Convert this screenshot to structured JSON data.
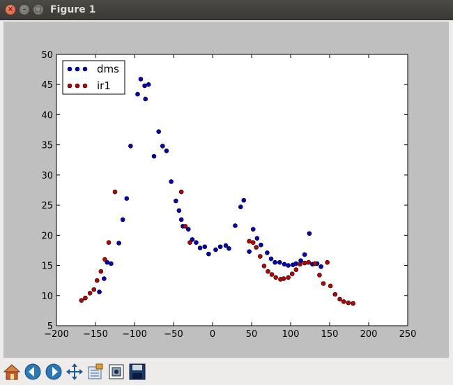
{
  "window": {
    "title": "Figure 1"
  },
  "toolbar": {
    "buttons": [
      "home-icon",
      "back-icon",
      "forward-icon",
      "pan-icon",
      "configure-subplots-icon",
      "zoom-icon",
      "save-icon"
    ]
  },
  "chart_data": {
    "type": "scatter",
    "xlim": [
      -200,
      250
    ],
    "ylim": [
      5,
      50
    ],
    "xticks": [
      -200,
      -150,
      -100,
      -50,
      0,
      50,
      100,
      150,
      200,
      250
    ],
    "yticks": [
      5,
      10,
      15,
      20,
      25,
      30,
      35,
      40,
      45,
      50
    ],
    "xlabel": "",
    "ylabel": "",
    "title": "",
    "grid": false,
    "legend_position": "upper-left",
    "series": [
      {
        "name": "dms",
        "color": "#0000bf",
        "points": [
          [
            -145,
            10.6
          ],
          [
            -139,
            12.8
          ],
          [
            -135,
            15.5
          ],
          [
            -130,
            15.3
          ],
          [
            -120,
            18.7
          ],
          [
            -115,
            22.6
          ],
          [
            -110,
            26.1
          ],
          [
            -105,
            34.8
          ],
          [
            -96,
            43.4
          ],
          [
            -92,
            45.9
          ],
          [
            -87,
            44.8
          ],
          [
            -86,
            42.6
          ],
          [
            -82,
            45
          ],
          [
            -75,
            33.1
          ],
          [
            -69,
            37.2
          ],
          [
            -64,
            34.8
          ],
          [
            -59,
            34
          ],
          [
            -53,
            28.9
          ],
          [
            -47,
            25.7
          ],
          [
            -43,
            24.1
          ],
          [
            -40,
            22.6
          ],
          [
            -38,
            21.5
          ],
          [
            -31,
            21
          ],
          [
            -26,
            19.3
          ],
          [
            -21,
            18.8
          ],
          [
            -16,
            17.9
          ],
          [
            -10,
            18.1
          ],
          [
            -5,
            16.9
          ],
          [
            4,
            17.6
          ],
          [
            10,
            18.1
          ],
          [
            17,
            18.3
          ],
          [
            21,
            17.8
          ],
          [
            29,
            21.6
          ],
          [
            36,
            24.7
          ],
          [
            40,
            25.8
          ],
          [
            47,
            17.3
          ],
          [
            52,
            21
          ],
          [
            57,
            19.5
          ],
          [
            62,
            18.4
          ],
          [
            70,
            17.1
          ],
          [
            75,
            16.1
          ],
          [
            80,
            15.5
          ],
          [
            86,
            15.5
          ],
          [
            92,
            15.2
          ],
          [
            97,
            15
          ],
          [
            103,
            15.1
          ],
          [
            107,
            15.3
          ],
          [
            113,
            15.8
          ],
          [
            118,
            16.8
          ],
          [
            124,
            20.3
          ],
          [
            128,
            15.2
          ],
          [
            134,
            15.3
          ],
          [
            139,
            14.8
          ]
        ]
      },
      {
        "name": "ir1",
        "color": "#bf0000",
        "points": [
          [
            -168,
            9.2
          ],
          [
            -163,
            9.6
          ],
          [
            -157,
            10.4
          ],
          [
            -152,
            11
          ],
          [
            -148,
            12.5
          ],
          [
            -143,
            14
          ],
          [
            -138,
            16
          ],
          [
            -133,
            18.8
          ],
          [
            -125,
            27.2
          ],
          [
            -40,
            27.2
          ],
          [
            -35,
            21.5
          ],
          [
            -29,
            18.8
          ],
          [
            47,
            19
          ],
          [
            52,
            18.8
          ],
          [
            56,
            18
          ],
          [
            61,
            16.5
          ],
          [
            66,
            14.9
          ],
          [
            71,
            14
          ],
          [
            76,
            13.5
          ],
          [
            81,
            13
          ],
          [
            87,
            12.7
          ],
          [
            91,
            12.8
          ],
          [
            97,
            13
          ],
          [
            102,
            13.6
          ],
          [
            107,
            14.3
          ],
          [
            112,
            15.2
          ],
          [
            118,
            15.4
          ],
          [
            123,
            15.5
          ],
          [
            131,
            15.3
          ],
          [
            137,
            13.4
          ],
          [
            142,
            12
          ],
          [
            147,
            15.5
          ],
          [
            151,
            11.6
          ],
          [
            157,
            10.2
          ],
          [
            163,
            9.4
          ],
          [
            168,
            9
          ],
          [
            174,
            8.8
          ],
          [
            180,
            8.7
          ]
        ]
      }
    ]
  }
}
